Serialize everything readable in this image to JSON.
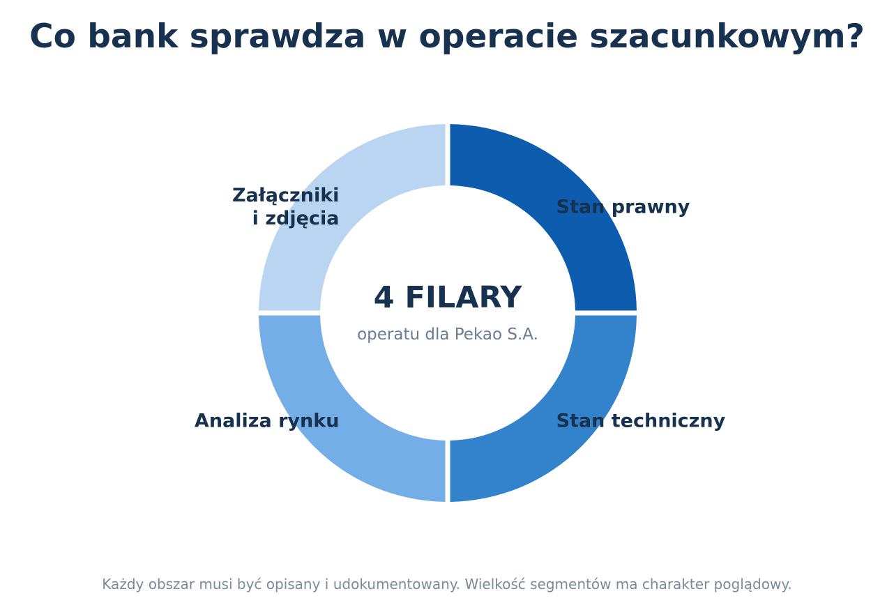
{
  "title": "Co bank sprawdza w operacie szacunkowym?",
  "center": {
    "main": "4 FILARY",
    "sub": "operatu dla Pekao S.A."
  },
  "footnote": "Każdy obszar musi być opisany i udokumentowany. Wielkość segmentów ma charakter poglądowy.",
  "chart_data": {
    "type": "pie",
    "variant": "donut",
    "title": "Co bank sprawdza w operacie szacunkowym?",
    "categories": [
      "Stan prawny",
      "Stan techniczny",
      "Analiza rynku",
      "Załączniki i zdjęcia"
    ],
    "values": [
      25,
      25,
      25,
      25
    ],
    "labels": [
      [
        "Stan prawny"
      ],
      [
        "Stan techniczny"
      ],
      [
        "Analiza rynku"
      ],
      [
        "Załączniki",
        "i zdjęcia"
      ]
    ],
    "colors": [
      "#0d5cae",
      "#3282cc",
      "#74aee6",
      "#b9d5f1"
    ],
    "legend": "none",
    "start": "top",
    "direction": "clockwise"
  }
}
